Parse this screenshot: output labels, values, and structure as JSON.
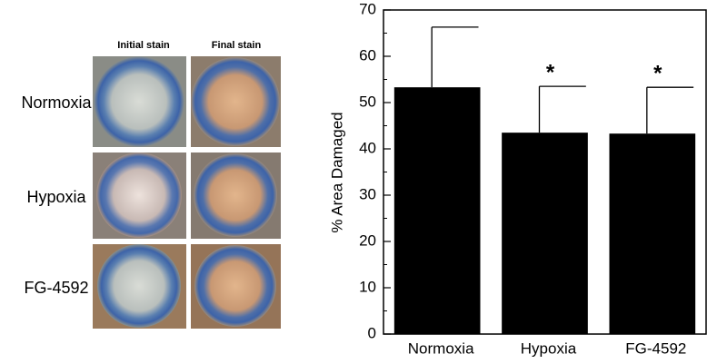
{
  "panel": {
    "columns": [
      "Initial stain",
      "Final stain"
    ],
    "rows": [
      "Normoxia",
      "Hypoxia",
      "FG-4592"
    ]
  },
  "chart_data": {
    "type": "bar",
    "ylabel": "% Area Damaged",
    "categories": [
      "Normoxia",
      "Hypoxia",
      "FG-4592"
    ],
    "values": [
      53.3,
      43.5,
      43.3
    ],
    "errors": [
      13,
      10,
      10
    ],
    "annotations": [
      null,
      "*",
      "*"
    ],
    "color": "#000000",
    "ylim": [
      0,
      70
    ],
    "yticks": [
      0,
      10,
      20,
      30,
      40,
      50,
      60,
      70
    ],
    "minor_yticks": [
      5,
      15,
      25,
      35,
      45,
      55,
      65
    ]
  }
}
